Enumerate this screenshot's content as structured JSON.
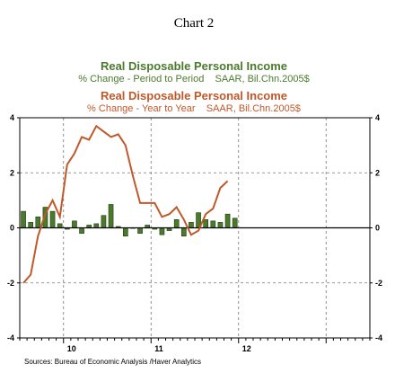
{
  "caption": "Chart 2",
  "chart_data": {
    "type": "bar",
    "series": [
      {
        "name": "Real Disposable Personal Income",
        "subtitle": "% Change - Period to Period    SAAR, Bil.Chn.2005$",
        "kind": "bar",
        "color": "#4a7a2c",
        "values": [
          0.6,
          0.2,
          0.4,
          0.75,
          0.6,
          0.15,
          -0.05,
          0.25,
          -0.2,
          0.1,
          0.15,
          0.45,
          0.85,
          0.05,
          -0.3,
          0.0,
          -0.2,
          0.1,
          -0.05,
          -0.25,
          -0.1,
          0.3,
          -0.3,
          0.2,
          0.55,
          0.3,
          0.25,
          0.2,
          0.5,
          0.35
        ]
      },
      {
        "name": "Real Disposable Personal Income",
        "subtitle": "% Change - Year to Year    SAAR, Bil.Chn.2005$",
        "kind": "line",
        "color": "#c0582a",
        "values": [
          -2.0,
          -1.7,
          -0.3,
          0.5,
          1.0,
          0.4,
          2.3,
          2.7,
          3.3,
          3.2,
          3.7,
          3.5,
          3.3,
          3.4,
          3.0,
          1.9,
          0.9,
          0.9,
          0.9,
          0.4,
          0.5,
          0.75,
          0.3,
          -0.25,
          -0.1,
          0.5,
          0.7,
          1.45,
          1.7
        ]
      }
    ],
    "x_tick_labels": [
      "10",
      "11",
      "12"
    ],
    "ylim": [
      -4,
      4
    ],
    "y_ticks": [
      -4,
      -2,
      0,
      2,
      4
    ],
    "y_tick_labels": [
      "-4",
      "-2",
      "0",
      "2",
      "4"
    ],
    "grid": true,
    "source": "Sources:  Bureau of Economic Analysis /Haver Analytics"
  }
}
